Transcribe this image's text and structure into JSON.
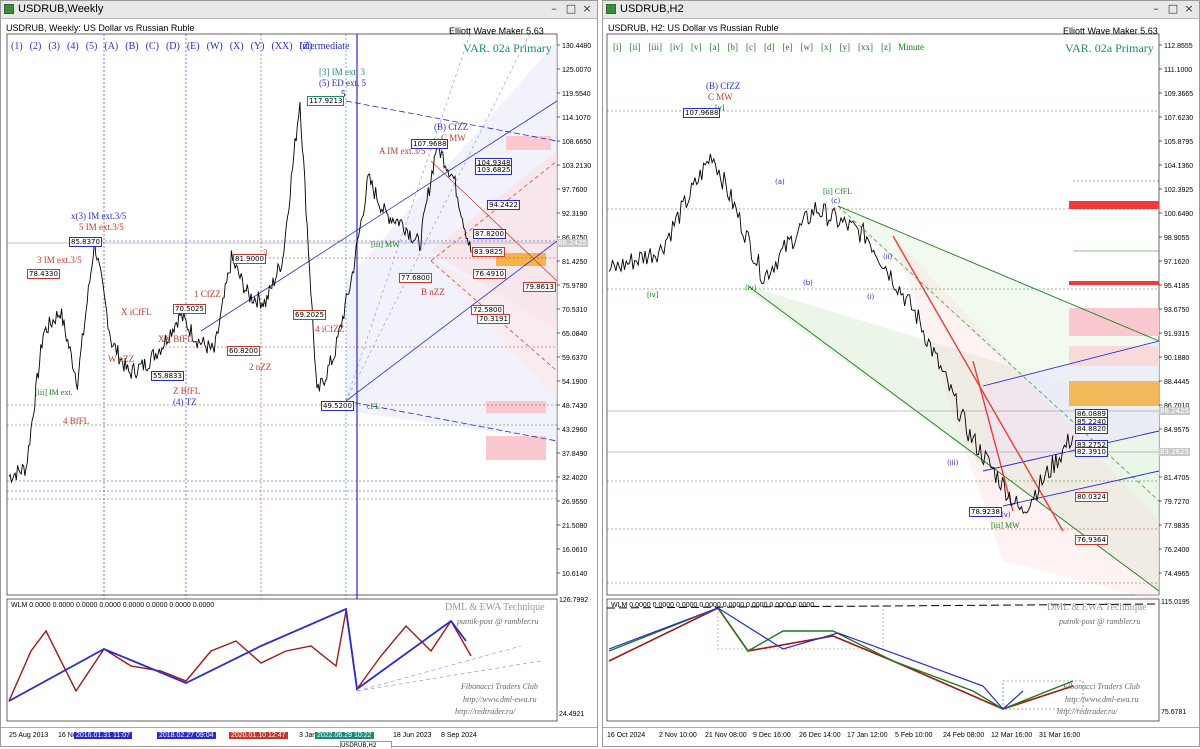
{
  "left": {
    "title": "USDRUB,Weekly",
    "info": "USDRUB, Weekly:  US Dollar vs Russian Ruble",
    "ewm": "Elliott Wave Maker 5.63",
    "variant": "VAR. 02a Primary",
    "degrees": [
      "(1)",
      "(2)",
      "(3)",
      "(4)",
      "(5)",
      "(A)",
      "(B)",
      "(C)",
      "(D)",
      "(E)",
      "(W)",
      "(X)",
      "(Y)",
      "(XX)",
      "(Z)"
    ],
    "degree_name": "Intermediate",
    "price_axis": [
      "130.4480",
      "125.0070",
      "119.5540",
      "114.1070",
      "108.6650",
      "103.2130",
      "97.7600",
      "92.3190",
      "86.8750",
      "81.4250",
      "75.9780",
      "70.5310",
      "65.0840",
      "59.6370",
      "54.1900",
      "48.7430",
      "43.2960",
      "37.8490",
      "32.4020",
      "26.9550",
      "21.5080",
      "16.0610",
      "10.6140"
    ],
    "price_tags": {
      "current": "86.2425",
      "r1": "83.9825",
      "r2": "81.4250",
      "r3": "79.8613",
      "r4": "76.4910",
      "r5": "72.5800",
      "r6": "70.3191",
      "top": "117.9213",
      "low": "49.5200",
      "b1": "107.9688",
      "b2": "104.9348",
      "b3": "103.6825",
      "b4": "94.2422",
      "b5": "87.8200",
      "b6": "85.8370",
      "b7": "78.4330",
      "b8": "81.9000",
      "b9": "77.6800",
      "b10": "70.5025",
      "b11": "69.2025",
      "b12": "60.8200",
      "b13": "55.8833"
    },
    "wave_labels": {
      "l1": "[3] IM ext. 3",
      "l2": "(5) ED ext. 5",
      "l3": "(B) CfZZ",
      "l4": "C MW",
      "l5": "A IM ext.3/5",
      "l6": "x(3) IM ext.3/5",
      "l7": "5 IM ext.3/5",
      "l8": "3 IM ext.3/5",
      "l9": "X iCfFL",
      "l10": "W nZZ",
      "l11": "XX BfFL",
      "l12": "1 CfZZ",
      "l13": "2 nZZ",
      "l14": "Z BfFL",
      "l15": "(4) TZ",
      "l16": "4 iCfZZ",
      "l17": "B nZZ",
      "l18": "4 BfFL",
      "l19": "[iii] IM ext.",
      "l20": "3",
      "l21": "5",
      "l22": "[iii] MW",
      "l23": "cFL"
    },
    "indicator": {
      "label": "WLM 0.0000 0.0000 0.0000 0.0000 0.0000 0.0000 0.0000 0.0000",
      "axis_top": "126.7992",
      "axis_bottom": "24.4921"
    },
    "dml": {
      "title": "DML & EWA Technique",
      "email": "putnik-post @ rambler.ru",
      "club": "Fibonacci   Traders   Club",
      "site1": "http://www.dml-ewa.ru",
      "site2": "http://redtrader.ru/"
    },
    "dates": [
      "25 Aug 2013",
      "16 No",
      "2016.01.31 11:07",
      "2018.02.27 09:04",
      "2020.01.10 12:47",
      "3 Jan",
      "2022.06.29 10:22",
      "18 Jun 2023",
      "8 Sep 2024"
    ],
    "tab": "USDRUB,H2"
  },
  "right": {
    "title": "USDRUB,H2",
    "info": "USDRUB, H2:  US Dollar vs Russian Ruble",
    "ewm": "Elliott Wave Maker 5.63",
    "variant": "VAR. 02a Primary",
    "degrees": [
      "[i]",
      "[ii]",
      "[iii]",
      "[iv]",
      "[v]",
      "[a]",
      "[b]",
      "[c]",
      "[d]",
      "[e]",
      "[w]",
      "[x]",
      "[y]",
      "[xx]",
      "[z]"
    ],
    "degree_name": "Minute",
    "price_axis": [
      "112.8555",
      "111.1000",
      "109.3665",
      "107.6230",
      "105.8795",
      "104.1360",
      "102.3925",
      "100.6490",
      "98.9055",
      "97.1620",
      "95.4185",
      "93.6750",
      "91.9315",
      "90.1880",
      "88.4445",
      "86.7010",
      "84.9575",
      "83.2140",
      "81.4705",
      "79.7270",
      "77.9835",
      "76.2400",
      "74.4965"
    ],
    "price_tags": {
      "current": "86.2425",
      "c2": "83.2625",
      "top": "107.9688",
      "low": "78.9238",
      "t1": "86.0889",
      "t2": "85.2240",
      "t3": "84.8820",
      "t4": "83.2752",
      "t5": "82.3910",
      "t6": "80.0324",
      "t7": "76.9364"
    },
    "wave_labels": {
      "l1": "(B) CfZZ",
      "l2": "C MW",
      "l3": "[ii] CfFL",
      "l4": "[iii] MW",
      "l5": "(iv)",
      "l6": "(v)",
      "l7": "(a)",
      "l8": "(b)",
      "l9": "(c)",
      "l10": "(i)",
      "l11": "(ii)",
      "l12": "(iii)",
      "l13": "[iv]",
      "l14": "[v]"
    },
    "indicator": {
      "label": "WLM 0.0000 0.0000 0.0000 0.0000 0.0000 0.0000 0.0000 0.0000",
      "axis_top": "115.0195",
      "axis_bottom": "75.6781"
    },
    "dml": {
      "title": "DML & EWA Technique",
      "email": "putnik-post @ rambler.ru",
      "club": "Fibonacci   Traders   Club",
      "site1": "http://www.dml-ewa.ru",
      "site2": "http://redtrader.ru/"
    },
    "dates": [
      "16 Oct 2024",
      "2 Nov 10:00",
      "21 Nov 08:00",
      "9 Dec 16:00",
      "26 Dec 14:00",
      "17 Jan 12:00",
      "5 Feb 10:00",
      "24 Feb 08:00",
      "12 Mar 16:00",
      "31 Mar 16:00"
    ]
  },
  "chart_data": [
    {
      "type": "line",
      "title": "USDRUB, Weekly: US Dollar vs Russian Ruble",
      "ylim": [
        10.6,
        130.4
      ],
      "x": [
        "2013-08",
        "2014-06",
        "2014-12",
        "2015-02",
        "2015-08",
        "2016-01",
        "2016-06",
        "2017-03",
        "2017-12",
        "2018-04",
        "2018-12",
        "2019-06",
        "2020-01",
        "2020-03",
        "2020-11",
        "2021-06",
        "2022-02",
        "2022-03",
        "2022-06",
        "2022-10",
        "2023-03",
        "2023-08",
        "2023-10",
        "2024-03",
        "2024-06",
        "2024-11",
        "2025-01",
        "2025-04"
      ],
      "values": [
        32.5,
        34.5,
        65.0,
        70.0,
        54.0,
        85.8,
        63.0,
        55.9,
        58.0,
        62.5,
        69.2,
        63.5,
        60.8,
        81.9,
        73.5,
        72.0,
        82.0,
        117.9,
        51.0,
        60.0,
        77.0,
        100.0,
        92.0,
        90.0,
        85.0,
        107.9,
        100.0,
        83.3
      ]
    },
    {
      "type": "line",
      "title": "USDRUB, H2: US Dollar vs Russian Ruble",
      "ylim": [
        74.5,
        112.9
      ],
      "x": [
        "16 Oct 2024",
        "2 Nov 10:00",
        "21 Nov 08:00",
        "9 Dec 16:00",
        "26 Dec 14:00",
        "17 Jan 12:00",
        "5 Feb 10:00",
        "24 Feb 08:00",
        "12 Mar 16:00",
        "31 Mar 16:00"
      ],
      "values": [
        96.5,
        98.0,
        105.0,
        96.0,
        101.0,
        99.0,
        93.0,
        84.5,
        78.9,
        84.5
      ]
    }
  ]
}
